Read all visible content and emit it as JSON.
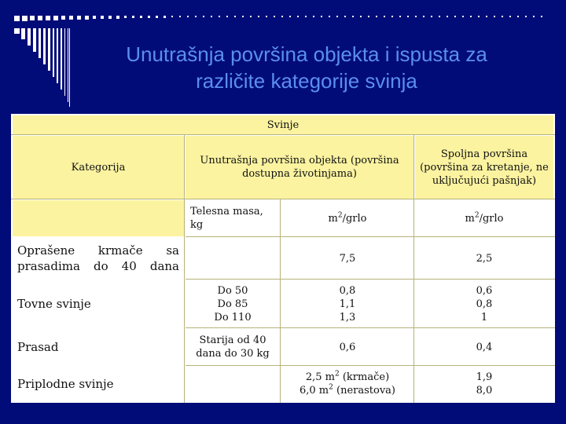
{
  "title": {
    "line1": "Unutrašnja površina objekta i ispusta za",
    "line2": "različite kategorije svinja"
  },
  "table": {
    "group_header": "Svinje",
    "col_kategorija": "Kategorija",
    "col_unutrasnja": "Unutrašnja površina objekta (površina dostupna životinjama)",
    "col_spoljna": "Spoljna površina (površina za kretanje, ne uključujući pašnjak)",
    "sub_telesna_masa": "Telesna masa, kg",
    "sub_m2grlo_base": "m",
    "sub_m2grlo_sup": "2",
    "sub_m2grlo_tail": "/grlo",
    "sub_m2grlo2_base": "m",
    "sub_m2grlo2_sup": "2",
    "sub_m2grlo2_tail": "/grlo",
    "rows": [
      {
        "kategorija": "Oprašene krmače sa prasadima do 40 dana",
        "masa": [],
        "unutrasnja": [
          "7,5"
        ],
        "spoljna": [
          "2,5"
        ]
      },
      {
        "kategorija": "Tovne svinje",
        "masa": [
          "Do 50",
          "Do 85",
          "Do 110"
        ],
        "unutrasnja": [
          "0,8",
          "1,1",
          "1,3"
        ],
        "spoljna": [
          "0,6",
          "0,8",
          "1"
        ]
      },
      {
        "kategorija": "Prasad",
        "masa": [
          "Starija od 40 dana do 30 kg"
        ],
        "unutrasnja": [
          "0,6"
        ],
        "spoljna": [
          "0,4"
        ]
      },
      {
        "kategorija": "Priplodne svinje",
        "masa": [],
        "unutrasnja_rich": [
          {
            "base": "2,5 m",
            "sup": "2",
            "tail": " (krmače)"
          },
          {
            "base": "6,0 m",
            "sup": "2",
            "tail": " (nerastova)"
          }
        ],
        "spoljna": [
          "1,9",
          "8,0"
        ]
      }
    ]
  },
  "colors": {
    "background": "#020c78",
    "title": "#5a8ef0",
    "header_fill": "#fbf3a0"
  }
}
